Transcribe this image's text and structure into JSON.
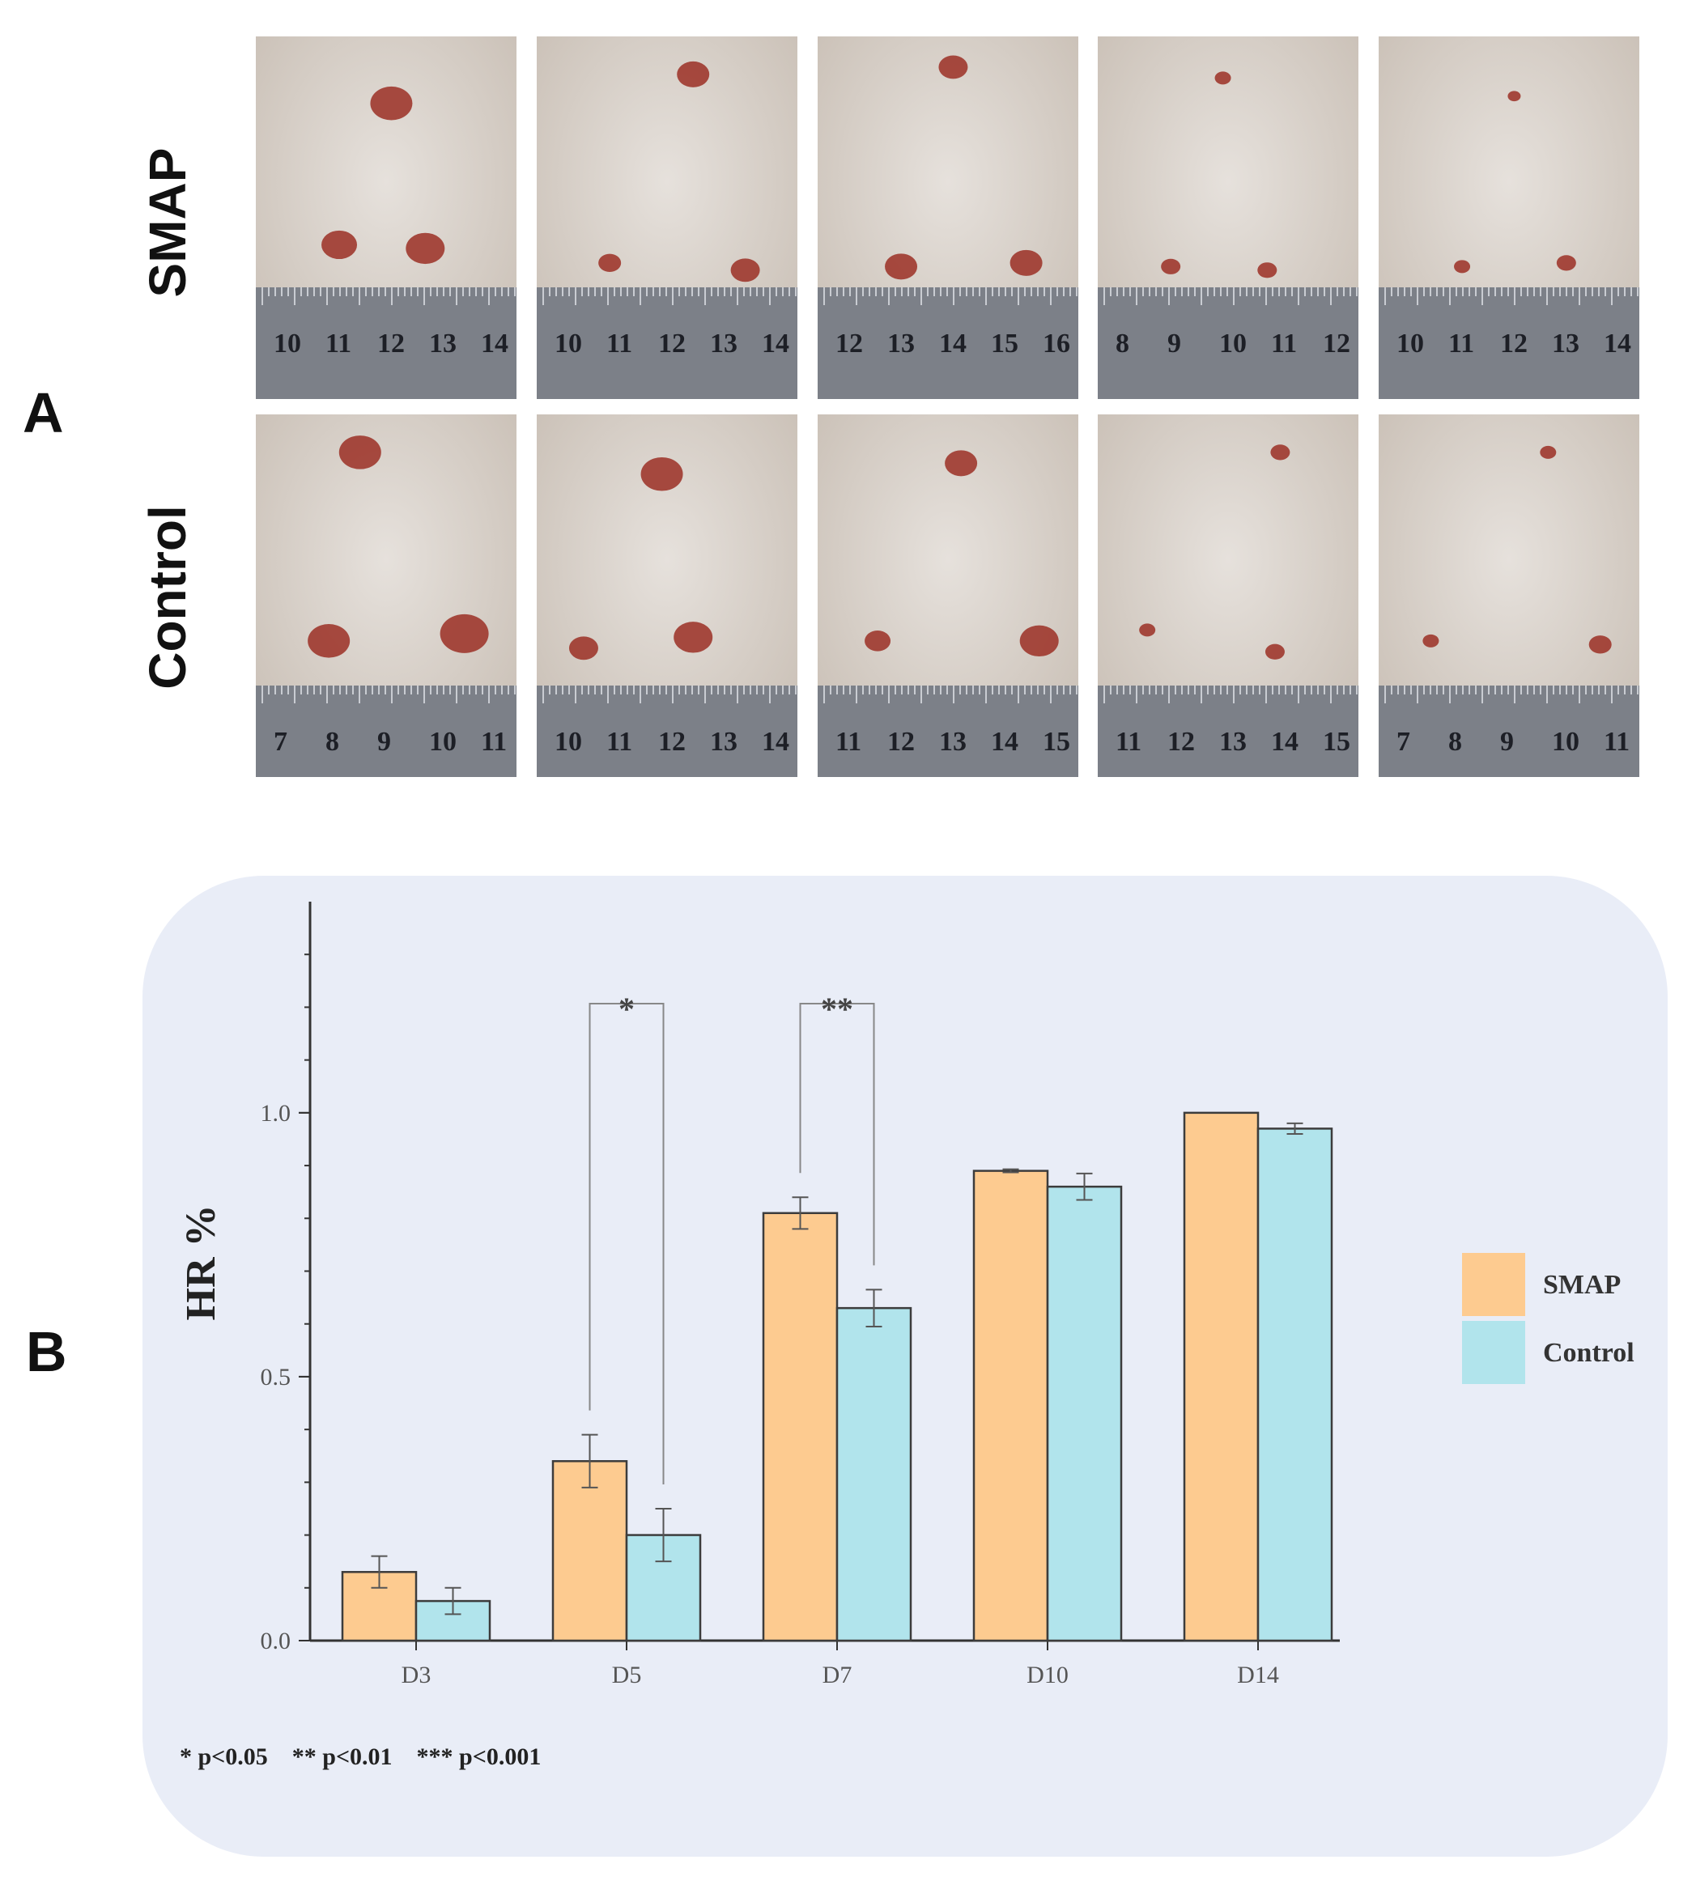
{
  "panel_a": {
    "letter": "A",
    "rows": [
      "SMAP",
      "Control"
    ],
    "photo_colors": {
      "fur_light": "#e6e1dc",
      "fur_dark": "#c9bfb5",
      "wound": "#9b2f25",
      "ruler": "#7c8088",
      "ruler_text": "#1d1f26"
    },
    "ruler_numbers": [
      [
        "10",
        "11",
        "12",
        "13",
        "14"
      ],
      [
        "10",
        "11",
        "12",
        "13",
        "14"
      ],
      [
        "12",
        "13",
        "14",
        "15",
        "16"
      ],
      [
        "8",
        "9",
        "10",
        "11",
        "12"
      ],
      [
        "10",
        "11",
        "12",
        "13",
        "14"
      ],
      [
        "7",
        "8",
        "9",
        "10",
        "11"
      ],
      [
        "10",
        "11",
        "12",
        "13",
        "14"
      ],
      [
        "11",
        "12",
        "13",
        "14",
        "15"
      ],
      [
        "11",
        "12",
        "13",
        "14",
        "15"
      ],
      [
        "7",
        "8",
        "9",
        "10",
        "11"
      ]
    ]
  },
  "panel_b": {
    "letter": "B",
    "footnote": "* p<0.05    ** p<0.01    *** p<0.001"
  },
  "chart_data": {
    "type": "bar",
    "title": "",
    "xlabel": "",
    "ylabel": "HR %",
    "categories": [
      "D3",
      "D5",
      "D7",
      "D10",
      "D14"
    ],
    "ylim": [
      0,
      1.4
    ],
    "yticks": [
      0.0,
      0.5,
      1.0
    ],
    "ytick_labels": [
      "0.0",
      "0.5",
      "1.0"
    ],
    "series": [
      {
        "name": "SMAP",
        "color": "#fdcb90",
        "values": [
          0.13,
          0.34,
          0.81,
          0.89,
          1.0
        ],
        "errors": [
          0.03,
          0.05,
          0.03,
          0.003,
          0.0
        ]
      },
      {
        "name": "Control",
        "color": "#b1e4ec",
        "values": [
          0.075,
          0.2,
          0.63,
          0.86,
          0.97
        ],
        "errors": [
          0.025,
          0.05,
          0.035,
          0.025,
          0.01
        ]
      }
    ],
    "significance": [
      {
        "category": "D5",
        "label": "*"
      },
      {
        "category": "D7",
        "label": "**"
      }
    ],
    "legend_position": "right",
    "grid": false
  }
}
